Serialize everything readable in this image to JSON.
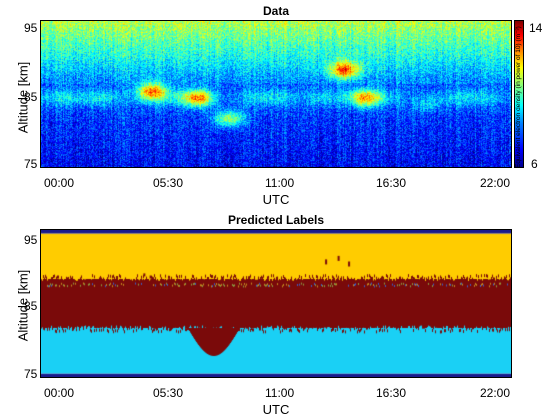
{
  "chart_data": [
    {
      "type": "heatmap",
      "title": "Data",
      "xlabel": "UTC",
      "ylabel": "Altitude [km]",
      "x_ticks": [
        "00:00",
        "05:30",
        "11:00",
        "16:30",
        "22:00"
      ],
      "y_ticks": [
        "75",
        "85",
        "95"
      ],
      "ylim": [
        75,
        96
      ],
      "colorbar": {
        "label": "Equivalent electron density (in power of 10) (m⁻³)",
        "min": 6,
        "max": 14,
        "tick_labels": [
          "6",
          "14"
        ]
      },
      "features": [
        {
          "time_h": 3.0,
          "altitude_km": 85,
          "level": 10
        },
        {
          "time_h": 5.3,
          "altitude_km": 86,
          "level": 13
        },
        {
          "time_h": 7.5,
          "altitude_km": 85,
          "level": 13
        },
        {
          "time_h": 9.0,
          "altitude_km": 82,
          "level": 12
        },
        {
          "time_h": 13.5,
          "altitude_km": 85,
          "level": 10
        },
        {
          "time_h": 14.5,
          "altitude_km": 89,
          "level": 13
        },
        {
          "time_h": 15.5,
          "altitude_km": 85,
          "level": 12
        },
        {
          "time_h": 18.5,
          "altitude_km": 84,
          "level": 10
        }
      ]
    },
    {
      "type": "heatmap",
      "title": "Predicted Labels",
      "xlabel": "UTC",
      "ylabel": "Altitude [km]",
      "x_ticks": [
        "00:00",
        "05:30",
        "11:00",
        "16:30",
        "22:00"
      ],
      "y_ticks": [
        "75",
        "85",
        "95"
      ],
      "ylim": [
        75,
        96
      ],
      "layers": [
        {
          "from_km": 75,
          "to_km": 75.5,
          "color": "#1a1a8c"
        },
        {
          "from_km": 75.5,
          "to_km": 82,
          "color": "#1ad0f5"
        },
        {
          "from_km": 82,
          "to_km": 89,
          "color": "#7a0a0a"
        },
        {
          "from_km": 89,
          "to_km": 95.5,
          "color": "#ffcc00"
        },
        {
          "from_km": 95.5,
          "to_km": 96,
          "color": "#1a1a8c"
        }
      ]
    }
  ]
}
